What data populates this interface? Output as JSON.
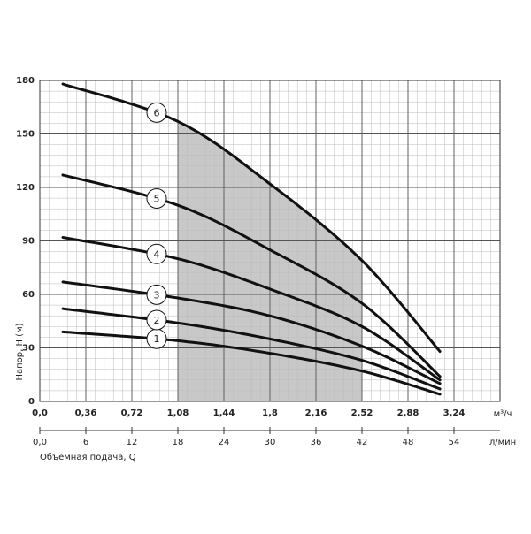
{
  "chart_data": {
    "type": "line",
    "y_label": "Напор, H (м)",
    "x_unit": "м³/ч",
    "x2_unit": "л/мин",
    "x2_label": "Объемная подача, Q",
    "x": [
      0.18,
      1.08,
      1.8,
      2.52,
      3.13
    ],
    "series": [
      {
        "name": "1",
        "values": [
          39,
          34,
          27,
          17,
          4
        ]
      },
      {
        "name": "2",
        "values": [
          52,
          44,
          35,
          23,
          7
        ]
      },
      {
        "name": "3",
        "values": [
          67,
          58,
          48,
          31,
          10
        ]
      },
      {
        "name": "4",
        "values": [
          92,
          80,
          63,
          42,
          12
        ]
      },
      {
        "name": "5",
        "values": [
          127,
          110,
          85,
          55,
          14
        ]
      },
      {
        "name": "6",
        "values": [
          178,
          157,
          122,
          79,
          28
        ]
      }
    ],
    "color": "#111111",
    "highlight_range": [
      1.08,
      2.52
    ],
    "highlight_color": "#c8c8c8",
    "xlim": [
      0,
      3.6
    ],
    "xticks": [
      {
        "value": 0,
        "label": "0,0"
      },
      {
        "value": 0.36,
        "label": "0,36"
      },
      {
        "value": 0.72,
        "label": "0,72"
      },
      {
        "value": 1.08,
        "label": "1,08"
      },
      {
        "value": 1.44,
        "label": "1,44"
      },
      {
        "value": 1.8,
        "label": "1,8"
      },
      {
        "value": 2.16,
        "label": "2,16"
      },
      {
        "value": 2.52,
        "label": "2,52"
      },
      {
        "value": 2.88,
        "label": "2,88"
      },
      {
        "value": 3.24,
        "label": "3,24"
      }
    ],
    "x2lim": [
      0,
      60
    ],
    "x2ticks": [
      {
        "value": 0,
        "label": "0,0"
      },
      6,
      12,
      18,
      24,
      30,
      36,
      42,
      48,
      54
    ],
    "ylim": [
      0,
      180
    ],
    "yticks": [
      0,
      30,
      60,
      90,
      120,
      150,
      180
    ],
    "grid": true
  }
}
